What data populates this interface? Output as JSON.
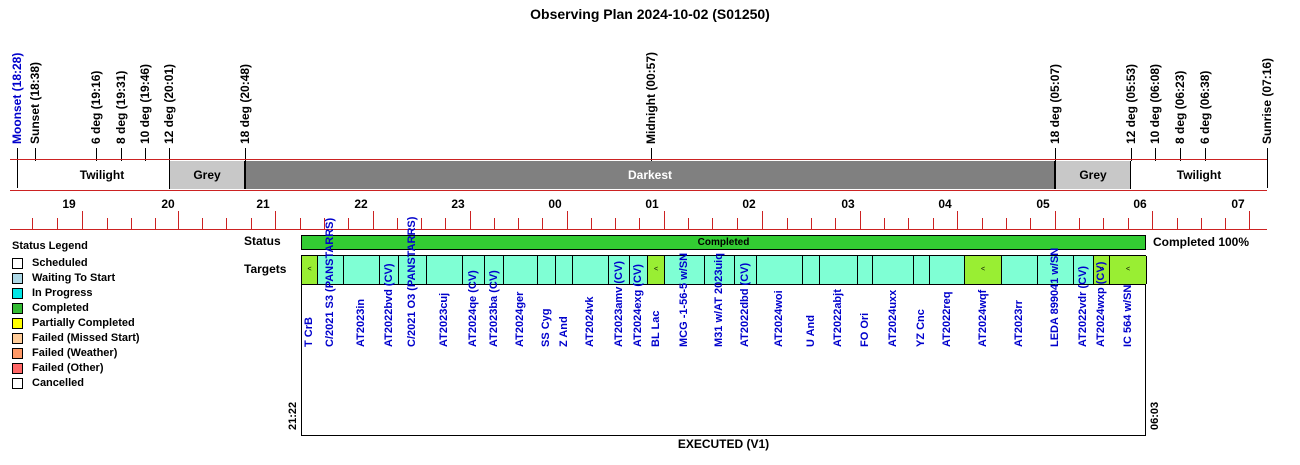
{
  "title": "Observing Plan 2024-10-02 (S01250)",
  "events": [
    {
      "label": "Moonset (18:28)",
      "color": "#0000cc"
    },
    {
      "label": "Sunset (18:38)",
      "color": "#000000"
    },
    {
      "label": "6 deg (19:16)",
      "color": "#000000"
    },
    {
      "label": "8 deg (19:31)",
      "color": "#000000"
    },
    {
      "label": "10 deg (19:46)",
      "color": "#000000"
    },
    {
      "label": "12 deg (20:01)",
      "color": "#000000"
    },
    {
      "label": "18 deg (20:48)",
      "color": "#000000"
    },
    {
      "label": "Midnight (00:57)",
      "color": "#000000"
    },
    {
      "label": "18 deg (05:07)",
      "color": "#000000"
    },
    {
      "label": "12 deg (05:53)",
      "color": "#000000"
    },
    {
      "label": "10 deg (06:08)",
      "color": "#000000"
    },
    {
      "label": "8 deg (06:23)",
      "color": "#000000"
    },
    {
      "label": "6 deg (06:38)",
      "color": "#000000"
    },
    {
      "label": "Sunrise (07:16)",
      "color": "#000000"
    }
  ],
  "bands": [
    {
      "label": "Twilight",
      "color": "#ffffff",
      "text_color": "#000000"
    },
    {
      "label": "Grey",
      "color": "#c8c8c8",
      "text_color": "#000000"
    },
    {
      "label": "Darkest",
      "color": "#808080",
      "text_color": "#ffffff"
    },
    {
      "label": "Grey",
      "color": "#c8c8c8",
      "text_color": "#000000"
    },
    {
      "label": "Twilight",
      "color": "#ffffff",
      "text_color": "#000000"
    }
  ],
  "hours": [
    "19",
    "20",
    "21",
    "22",
    "23",
    "00",
    "01",
    "02",
    "03",
    "04",
    "05",
    "06",
    "07"
  ],
  "legend": {
    "title": "Status Legend",
    "items": [
      {
        "label": "Scheduled",
        "color": "#ffffff"
      },
      {
        "label": "Waiting To Start",
        "color": "#add8e6"
      },
      {
        "label": "In Progress",
        "color": "#00e5e5"
      },
      {
        "label": "Completed",
        "color": "#33bb33"
      },
      {
        "label": "Partially Completed",
        "color": "#ffff00"
      },
      {
        "label": "Failed (Missed Start)",
        "color": "#ffcc99"
      },
      {
        "label": "Failed (Weather)",
        "color": "#ff9966"
      },
      {
        "label": "Failed (Other)",
        "color": "#ff6666"
      },
      {
        "label": "Cancelled",
        "color": "#ffffff"
      }
    ]
  },
  "status": {
    "row_label": "Status",
    "text": "Completed",
    "completion": "Completed 100%"
  },
  "targets_label": "Targets",
  "target_mark": "<",
  "targets": [
    {
      "name": "T CrB",
      "color": "#99ee33",
      "marked": true
    },
    {
      "name": "C/2021 S3 (PANSTARRS)",
      "color": "#7fffd4",
      "marked": false
    },
    {
      "name": "AT2023in",
      "color": "#7fffd4",
      "marked": false
    },
    {
      "name": "AT2022bvd (CV)",
      "color": "#7fffd4",
      "marked": false
    },
    {
      "name": "C/2021 O3 (PANSTARRS)",
      "color": "#7fffd4",
      "marked": false
    },
    {
      "name": "AT2023cuj",
      "color": "#7fffd4",
      "marked": false
    },
    {
      "name": "AT2024qe (CV)",
      "color": "#7fffd4",
      "marked": false
    },
    {
      "name": "AT2023ba (CV)",
      "color": "#7fffd4",
      "marked": false
    },
    {
      "name": "AT2024ger",
      "color": "#7fffd4",
      "marked": false
    },
    {
      "name": "SS Cyg",
      "color": "#7fffd4",
      "marked": false
    },
    {
      "name": "Z And",
      "color": "#7fffd4",
      "marked": false
    },
    {
      "name": "AT2024vk",
      "color": "#7fffd4",
      "marked": false
    },
    {
      "name": "AT2023amv (CV)",
      "color": "#7fffd4",
      "marked": false
    },
    {
      "name": "AT2024exg (CV)",
      "color": "#7fffd4",
      "marked": false
    },
    {
      "name": "BL Lac",
      "color": "#99ee33",
      "marked": true
    },
    {
      "name": "MCG -1-56-5 w/SN",
      "color": "#7fffd4",
      "marked": false
    },
    {
      "name": "M31 w/AT 2023uiq",
      "color": "#7fffd4",
      "marked": false
    },
    {
      "name": "AT2022dbd (CV)",
      "color": "#7fffd4",
      "marked": false
    },
    {
      "name": "AT2024woi",
      "color": "#7fffd4",
      "marked": false
    },
    {
      "name": "U And",
      "color": "#7fffd4",
      "marked": false
    },
    {
      "name": "AT2022abjt",
      "color": "#7fffd4",
      "marked": false
    },
    {
      "name": "FO Ori",
      "color": "#7fffd4",
      "marked": false
    },
    {
      "name": "AT2024uxx",
      "color": "#7fffd4",
      "marked": false
    },
    {
      "name": "YZ Cnc",
      "color": "#7fffd4",
      "marked": false
    },
    {
      "name": "AT2022req",
      "color": "#7fffd4",
      "marked": false
    },
    {
      "name": "AT2024wqf",
      "color": "#99ee33",
      "marked": true
    },
    {
      "name": "AT2023rr",
      "color": "#7fffd4",
      "marked": false
    },
    {
      "name": "LEDA 899041 w/SN",
      "color": "#7fffd4",
      "marked": false
    },
    {
      "name": "AT2022vdr (CV)",
      "color": "#7fffd4",
      "marked": false
    },
    {
      "name": "AT2024wxp (CV)",
      "color": "#99ee33",
      "marked": true
    },
    {
      "name": "IC 564 w/SN",
      "color": "#99ee33",
      "marked": true
    }
  ],
  "start_time": "21:22",
  "end_time": "06:03",
  "footer": "EXECUTED (V1)"
}
